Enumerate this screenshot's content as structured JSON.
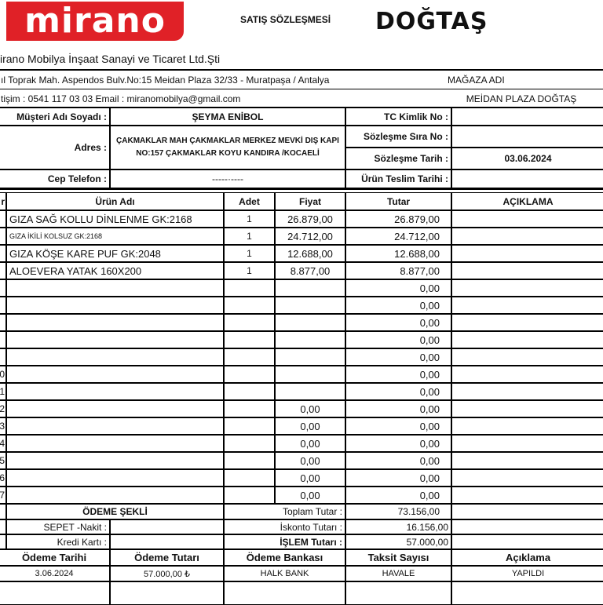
{
  "header": {
    "logo_left": "mirano",
    "title": "SATIŞ SÖZLEŞMESİ",
    "logo_right": "DOĞTAŞ",
    "brand_color": "#e02127"
  },
  "company": {
    "name": "irano Mobilya İnşaat Sanayi ve Ticaret Ltd.Şti",
    "address": "ıl Toprak Mah. Aspendos Bulv.No:15 Meidan Plaza 32/33 - Muratpaşa / Antalya",
    "contact": "tişim : 0541 117 03 03  Email : miranomobilya@gmail.com",
    "store_label": "MAĞAZA ADI",
    "store_name": "MEİDAN PLAZA DOĞTAŞ"
  },
  "customer": {
    "name_label": "Müşteri Adı Soyadı :",
    "name": "ŞEYMA ENİBOL",
    "address_label": "Adres :",
    "address_line1": "ÇAKMAKLAR MAH ÇAKMAKLAR MERKEZ MEVKİ DIŞ KAPI",
    "address_line2": "NO:157 ÇAKMAKLAR KOYU KANDIRA /KOCAELİ",
    "phone_label": "Cep Telefon :",
    "phone": "-----·----",
    "tc_label": "TC Kimlik No :",
    "tc": "",
    "contract_no_label": "Sözleşme Sıra No :",
    "contract_no": "",
    "contract_date_label": "Sözleşme Tarih :",
    "contract_date": "03.06.2024",
    "delivery_date_label": "Ürün Teslim Tarihi :",
    "delivery_date": ""
  },
  "items": {
    "headers": {
      "no": "r",
      "name": "Ürün Adı",
      "qty": "Adet",
      "price": "Fiyat",
      "total": "Tutar",
      "note": "AÇIKLAMA"
    },
    "rows": [
      {
        "no": "",
        "name": "GIZA SAĞ KOLLU DİNLENME GK:2168",
        "qty": "1",
        "price": "26.879,00",
        "total": "26.879,00"
      },
      {
        "no": "",
        "name": "GIZA İKİLİ KOLSUZ GK:2168",
        "qty": "1",
        "price": "24.712,00",
        "total": "24.712,00",
        "small": true
      },
      {
        "no": "",
        "name": "GIZA KÖŞE KARE PUF GK:2048",
        "qty": "1",
        "price": "12.688,00",
        "total": "12.688,00"
      },
      {
        "no": "",
        "name": "ALOEVERA YATAK 160X200",
        "qty": "1",
        "price": "8.877,00",
        "total": "8.877,00"
      },
      {
        "no": "",
        "name": "",
        "qty": "",
        "price": "",
        "total": "0,00"
      },
      {
        "no": "",
        "name": "",
        "qty": "",
        "price": "",
        "total": "0,00"
      },
      {
        "no": "",
        "name": "",
        "qty": "",
        "price": "",
        "total": "0,00"
      },
      {
        "no": "",
        "name": "",
        "qty": "",
        "price": "",
        "total": "0,00"
      },
      {
        "no": "",
        "name": "",
        "qty": "",
        "price": "",
        "total": "0,00"
      },
      {
        "no": "0",
        "name": "",
        "qty": "",
        "price": "",
        "total": "0,00"
      },
      {
        "no": "1",
        "name": "",
        "qty": "",
        "price": "",
        "total": "0,00"
      },
      {
        "no": "2",
        "name": "",
        "qty": "",
        "price": "0,00",
        "total": "0,00"
      },
      {
        "no": "3",
        "name": "",
        "qty": "",
        "price": "0,00",
        "total": "0,00"
      },
      {
        "no": "4",
        "name": "",
        "qty": "",
        "price": "0,00",
        "total": "0,00"
      },
      {
        "no": "5",
        "name": "",
        "qty": "",
        "price": "0,00",
        "total": "0,00"
      },
      {
        "no": "6",
        "name": "",
        "qty": "",
        "price": "0,00",
        "total": "0,00"
      },
      {
        "no": "7",
        "name": "",
        "qty": "",
        "price": "0,00",
        "total": "0,00"
      }
    ]
  },
  "payment": {
    "method_title": "ÖDEME ŞEKLİ",
    "cash_label": "SEPET -Nakit :",
    "cash_value": "",
    "card_label": "Kredi Kartı :",
    "card_value": "",
    "total_label": "Toplam Tutar :",
    "total": "73.156,00",
    "discount_label": "İskonto Tutarı :",
    "discount": "16.156,00",
    "net_label": "İŞLEM Tutarı :",
    "net": "57.000,00",
    "headers": [
      "Ödeme  Tarihi",
      "Ödeme Tutarı",
      "Ödeme Bankası",
      "Taksit Sayısı",
      "Açıklama"
    ],
    "rows": [
      [
        "3.06.2024",
        "57.000,00 ₺",
        "HALK BANK",
        "HAVALE",
        "YAPILDI"
      ]
    ]
  }
}
